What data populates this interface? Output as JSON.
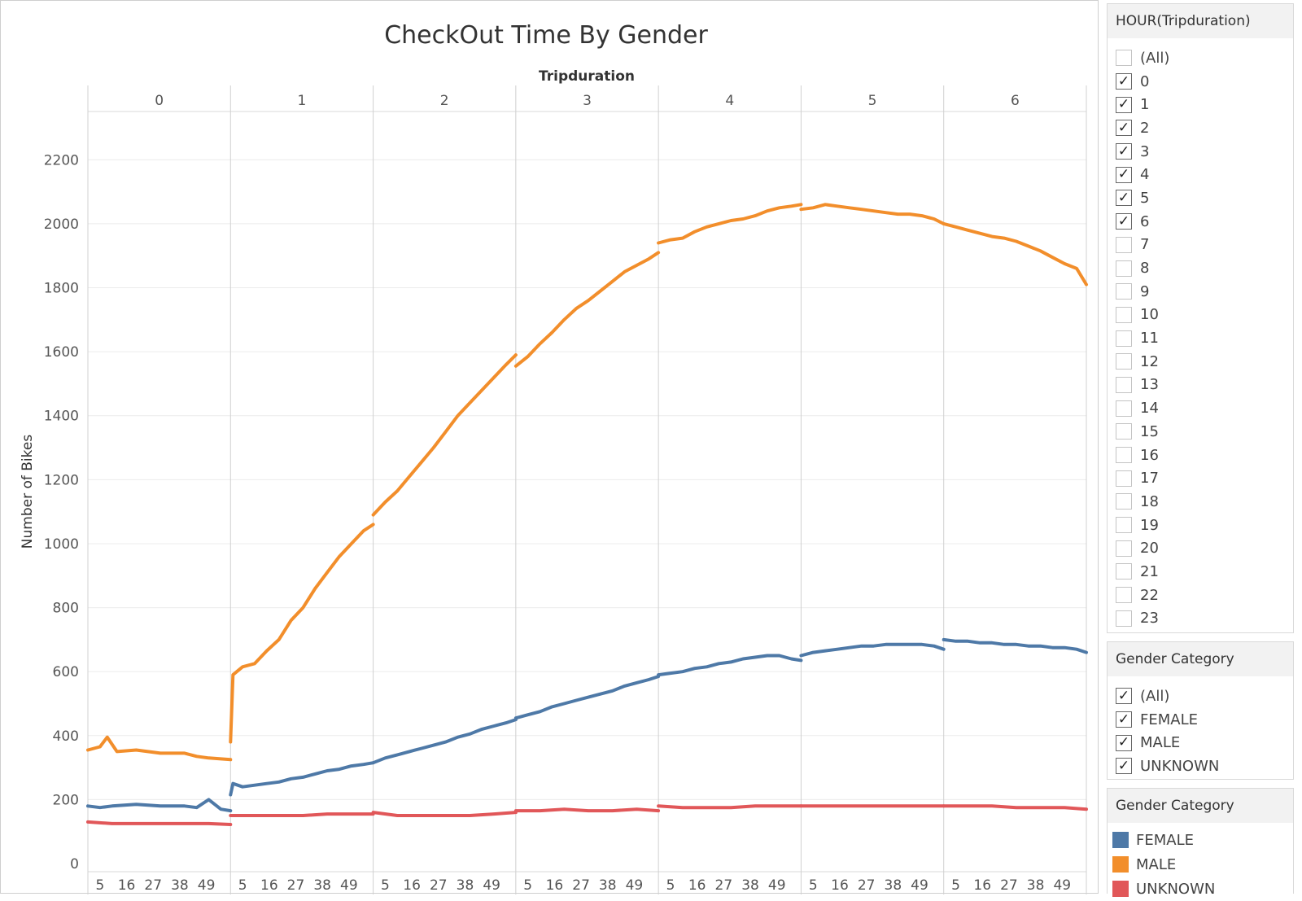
{
  "chart_data": {
    "type": "line",
    "title": "CheckOut Time By Gender",
    "column_header": "Tripduration",
    "ylabel": "Number of Bikes",
    "ylim": [
      0,
      2300
    ],
    "yticks": [
      0,
      200,
      400,
      600,
      800,
      1000,
      1200,
      1400,
      1600,
      1800,
      2000,
      2200
    ],
    "panels": [
      "0",
      "1",
      "2",
      "3",
      "4",
      "5",
      "6"
    ],
    "minute_ticks": [
      "5",
      "16",
      "27",
      "38",
      "49"
    ],
    "x_unit": "minute",
    "x_range": [
      0,
      59
    ],
    "grid": true,
    "series": [
      {
        "name": "MALE",
        "color": "#f28e2b",
        "points": [
          [
            [
              0,
              355
            ],
            [
              5,
              365
            ],
            [
              8,
              395
            ],
            [
              12,
              350
            ],
            [
              20,
              355
            ],
            [
              30,
              345
            ],
            [
              40,
              345
            ],
            [
              45,
              335
            ],
            [
              50,
              330
            ],
            [
              59,
              325
            ]
          ],
          [
            [
              0,
              380
            ],
            [
              1,
              590
            ],
            [
              5,
              615
            ],
            [
              10,
              625
            ],
            [
              15,
              665
            ],
            [
              20,
              700
            ],
            [
              25,
              760
            ],
            [
              30,
              800
            ],
            [
              35,
              860
            ],
            [
              40,
              910
            ],
            [
              45,
              960
            ],
            [
              50,
              1000
            ],
            [
              55,
              1040
            ],
            [
              59,
              1060
            ]
          ],
          [
            [
              0,
              1090
            ],
            [
              5,
              1130
            ],
            [
              10,
              1165
            ],
            [
              15,
              1210
            ],
            [
              20,
              1255
            ],
            [
              25,
              1300
            ],
            [
              30,
              1350
            ],
            [
              35,
              1400
            ],
            [
              40,
              1440
            ],
            [
              45,
              1480
            ],
            [
              50,
              1520
            ],
            [
              55,
              1560
            ],
            [
              59,
              1590
            ]
          ],
          [
            [
              0,
              1555
            ],
            [
              5,
              1585
            ],
            [
              10,
              1625
            ],
            [
              15,
              1660
            ],
            [
              20,
              1700
            ],
            [
              25,
              1735
            ],
            [
              30,
              1760
            ],
            [
              35,
              1790
            ],
            [
              40,
              1820
            ],
            [
              45,
              1850
            ],
            [
              50,
              1870
            ],
            [
              55,
              1890
            ],
            [
              59,
              1910
            ]
          ],
          [
            [
              0,
              1940
            ],
            [
              5,
              1950
            ],
            [
              10,
              1955
            ],
            [
              15,
              1975
            ],
            [
              20,
              1990
            ],
            [
              25,
              2000
            ],
            [
              30,
              2010
            ],
            [
              35,
              2015
            ],
            [
              40,
              2025
            ],
            [
              45,
              2040
            ],
            [
              50,
              2050
            ],
            [
              55,
              2055
            ],
            [
              59,
              2060
            ]
          ],
          [
            [
              0,
              2045
            ],
            [
              5,
              2050
            ],
            [
              10,
              2060
            ],
            [
              15,
              2055
            ],
            [
              20,
              2050
            ],
            [
              25,
              2045
            ],
            [
              30,
              2040
            ],
            [
              35,
              2035
            ],
            [
              40,
              2030
            ],
            [
              45,
              2030
            ],
            [
              50,
              2025
            ],
            [
              55,
              2015
            ],
            [
              59,
              2000
            ]
          ],
          [
            [
              0,
              2000
            ],
            [
              5,
              1990
            ],
            [
              10,
              1980
            ],
            [
              15,
              1970
            ],
            [
              20,
              1960
            ],
            [
              25,
              1955
            ],
            [
              30,
              1945
            ],
            [
              35,
              1930
            ],
            [
              40,
              1915
            ],
            [
              45,
              1895
            ],
            [
              50,
              1875
            ],
            [
              55,
              1860
            ],
            [
              59,
              1810
            ]
          ]
        ]
      },
      {
        "name": "FEMALE",
        "color": "#4e79a7",
        "points": [
          [
            [
              0,
              180
            ],
            [
              5,
              175
            ],
            [
              10,
              180
            ],
            [
              20,
              185
            ],
            [
              30,
              180
            ],
            [
              40,
              180
            ],
            [
              45,
              175
            ],
            [
              50,
              200
            ],
            [
              55,
              170
            ],
            [
              59,
              165
            ]
          ],
          [
            [
              0,
              215
            ],
            [
              1,
              250
            ],
            [
              5,
              240
            ],
            [
              10,
              245
            ],
            [
              15,
              250
            ],
            [
              20,
              255
            ],
            [
              25,
              265
            ],
            [
              30,
              270
            ],
            [
              35,
              280
            ],
            [
              40,
              290
            ],
            [
              45,
              295
            ],
            [
              50,
              305
            ],
            [
              55,
              310
            ],
            [
              59,
              315
            ]
          ],
          [
            [
              0,
              315
            ],
            [
              5,
              330
            ],
            [
              10,
              340
            ],
            [
              15,
              350
            ],
            [
              20,
              360
            ],
            [
              25,
              370
            ],
            [
              30,
              380
            ],
            [
              35,
              395
            ],
            [
              40,
              405
            ],
            [
              45,
              420
            ],
            [
              50,
              430
            ],
            [
              55,
              440
            ],
            [
              59,
              450
            ]
          ],
          [
            [
              0,
              455
            ],
            [
              5,
              465
            ],
            [
              10,
              475
            ],
            [
              15,
              490
            ],
            [
              20,
              500
            ],
            [
              25,
              510
            ],
            [
              30,
              520
            ],
            [
              35,
              530
            ],
            [
              40,
              540
            ],
            [
              45,
              555
            ],
            [
              50,
              565
            ],
            [
              55,
              575
            ],
            [
              59,
              585
            ]
          ],
          [
            [
              0,
              590
            ],
            [
              5,
              595
            ],
            [
              10,
              600
            ],
            [
              15,
              610
            ],
            [
              20,
              615
            ],
            [
              25,
              625
            ],
            [
              30,
              630
            ],
            [
              35,
              640
            ],
            [
              40,
              645
            ],
            [
              45,
              650
            ],
            [
              50,
              650
            ],
            [
              55,
              640
            ],
            [
              59,
              635
            ]
          ],
          [
            [
              0,
              650
            ],
            [
              5,
              660
            ],
            [
              10,
              665
            ],
            [
              15,
              670
            ],
            [
              20,
              675
            ],
            [
              25,
              680
            ],
            [
              30,
              680
            ],
            [
              35,
              685
            ],
            [
              40,
              685
            ],
            [
              45,
              685
            ],
            [
              50,
              685
            ],
            [
              55,
              680
            ],
            [
              59,
              670
            ]
          ],
          [
            [
              0,
              700
            ],
            [
              5,
              695
            ],
            [
              10,
              695
            ],
            [
              15,
              690
            ],
            [
              20,
              690
            ],
            [
              25,
              685
            ],
            [
              30,
              685
            ],
            [
              35,
              680
            ],
            [
              40,
              680
            ],
            [
              45,
              675
            ],
            [
              50,
              675
            ],
            [
              55,
              670
            ],
            [
              59,
              660
            ]
          ]
        ]
      },
      {
        "name": "UNKNOWN",
        "color": "#e15759",
        "points": [
          [
            [
              0,
              130
            ],
            [
              10,
              125
            ],
            [
              20,
              125
            ],
            [
              30,
              125
            ],
            [
              40,
              125
            ],
            [
              50,
              125
            ],
            [
              59,
              122
            ]
          ],
          [
            [
              0,
              150
            ],
            [
              10,
              150
            ],
            [
              20,
              150
            ],
            [
              30,
              150
            ],
            [
              40,
              155
            ],
            [
              50,
              155
            ],
            [
              59,
              155
            ]
          ],
          [
            [
              0,
              160
            ],
            [
              10,
              150
            ],
            [
              20,
              150
            ],
            [
              30,
              150
            ],
            [
              40,
              150
            ],
            [
              50,
              155
            ],
            [
              59,
              160
            ]
          ],
          [
            [
              0,
              165
            ],
            [
              10,
              165
            ],
            [
              20,
              170
            ],
            [
              30,
              165
            ],
            [
              40,
              165
            ],
            [
              50,
              170
            ],
            [
              59,
              165
            ]
          ],
          [
            [
              0,
              180
            ],
            [
              10,
              175
            ],
            [
              20,
              175
            ],
            [
              30,
              175
            ],
            [
              40,
              180
            ],
            [
              50,
              180
            ],
            [
              59,
              180
            ]
          ],
          [
            [
              0,
              180
            ],
            [
              10,
              180
            ],
            [
              20,
              180
            ],
            [
              30,
              180
            ],
            [
              40,
              180
            ],
            [
              50,
              180
            ],
            [
              59,
              180
            ]
          ],
          [
            [
              0,
              180
            ],
            [
              10,
              180
            ],
            [
              20,
              180
            ],
            [
              30,
              175
            ],
            [
              40,
              175
            ],
            [
              50,
              175
            ],
            [
              59,
              170
            ]
          ]
        ]
      }
    ]
  },
  "filters": {
    "hour": {
      "title": "HOUR(Tripduration)",
      "options": [
        {
          "label": "(All)",
          "checked": false
        },
        {
          "label": "0",
          "checked": true
        },
        {
          "label": "1",
          "checked": true
        },
        {
          "label": "2",
          "checked": true
        },
        {
          "label": "3",
          "checked": true
        },
        {
          "label": "4",
          "checked": true
        },
        {
          "label": "5",
          "checked": true
        },
        {
          "label": "6",
          "checked": true
        },
        {
          "label": "7",
          "checked": false
        },
        {
          "label": "8",
          "checked": false
        },
        {
          "label": "9",
          "checked": false
        },
        {
          "label": "10",
          "checked": false
        },
        {
          "label": "11",
          "checked": false
        },
        {
          "label": "12",
          "checked": false
        },
        {
          "label": "13",
          "checked": false
        },
        {
          "label": "14",
          "checked": false
        },
        {
          "label": "15",
          "checked": false
        },
        {
          "label": "16",
          "checked": false
        },
        {
          "label": "17",
          "checked": false
        },
        {
          "label": "18",
          "checked": false
        },
        {
          "label": "19",
          "checked": false
        },
        {
          "label": "20",
          "checked": false
        },
        {
          "label": "21",
          "checked": false
        },
        {
          "label": "22",
          "checked": false
        },
        {
          "label": "23",
          "checked": false
        }
      ]
    },
    "gender": {
      "title": "Gender Category",
      "options": [
        {
          "label": "(All)",
          "checked": true
        },
        {
          "label": "FEMALE",
          "checked": true
        },
        {
          "label": "MALE",
          "checked": true
        },
        {
          "label": "UNKNOWN",
          "checked": true
        }
      ]
    }
  },
  "legend": {
    "title": "Gender Category",
    "items": [
      {
        "label": "FEMALE",
        "color": "#4e79a7"
      },
      {
        "label": "MALE",
        "color": "#f28e2b"
      },
      {
        "label": "UNKNOWN",
        "color": "#e15759"
      }
    ]
  }
}
